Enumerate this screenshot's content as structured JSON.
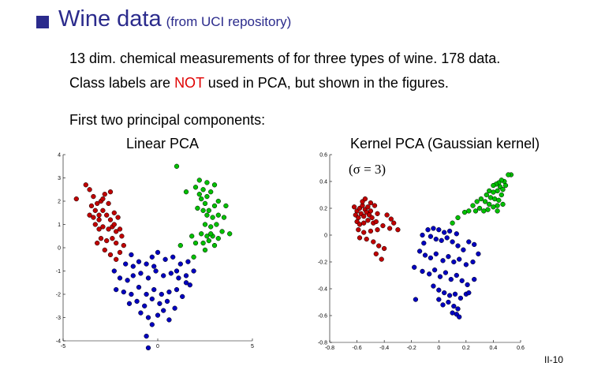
{
  "slide": {
    "title": "Wine data",
    "title_note": "(from UCI repository)",
    "line1": "13 dim. chemical measurements of for three types of wine. 178 data.",
    "line2_pre": "Class labels are ",
    "line2_emph": "NOT",
    "line2_post": " used in PCA, but shown in the figures.",
    "line3": "First two principal components:",
    "page_number": "II-10"
  },
  "colors": {
    "class1": "#c00000",
    "class2": "#00c000",
    "class3": "#0000c0",
    "accent": "#2b2b8c",
    "emphasis": "#e00000"
  },
  "chart_data": [
    {
      "type": "scatter",
      "title": "Linear PCA",
      "xlim": [
        -5,
        5
      ],
      "ylim": [
        -4,
        4
      ],
      "x_ticks": [
        "-5",
        "0",
        "5"
      ],
      "y_ticks": [
        "4",
        "3",
        "2",
        "1",
        "0",
        "-1",
        "-2",
        "-3",
        "-4"
      ],
      "series": [
        {
          "color": "#c00000",
          "points": [
            [
              -4.3,
              2.1
            ],
            [
              -3.8,
              2.7
            ],
            [
              -3.6,
              2.5
            ],
            [
              -3.4,
              2.2
            ],
            [
              -3.5,
              1.8
            ],
            [
              -3.3,
              1.6
            ],
            [
              -3.2,
              1.9
            ],
            [
              -3.0,
              2.0
            ],
            [
              -2.8,
              2.3
            ],
            [
              -2.5,
              2.4
            ],
            [
              -3.6,
              1.4
            ],
            [
              -3.4,
              1.3
            ],
            [
              -3.1,
              1.4
            ],
            [
              -2.9,
              1.6
            ],
            [
              -2.7,
              1.4
            ],
            [
              -2.5,
              1.2
            ],
            [
              -2.3,
              1.5
            ],
            [
              -2.1,
              1.3
            ],
            [
              -3.3,
              1.0
            ],
            [
              -3.1,
              0.8
            ],
            [
              -2.9,
              0.9
            ],
            [
              -2.6,
              0.8
            ],
            [
              -2.4,
              0.9
            ],
            [
              -2.2,
              0.7
            ],
            [
              -2.0,
              0.8
            ],
            [
              -3.0,
              0.4
            ],
            [
              -2.7,
              0.3
            ],
            [
              -2.4,
              0.4
            ],
            [
              -2.2,
              0.2
            ],
            [
              -1.9,
              0.5
            ],
            [
              -3.2,
              0.2
            ],
            [
              -2.8,
              -0.1
            ],
            [
              -2.5,
              -0.3
            ],
            [
              -2.2,
              -0.5
            ],
            [
              -2.0,
              -0.2
            ],
            [
              -2.6,
              1.9
            ],
            [
              -2.9,
              2.1
            ],
            [
              -3.1,
              1.2
            ],
            [
              -2.3,
              1.0
            ],
            [
              -1.8,
              0.1
            ]
          ]
        },
        {
          "color": "#00c000",
          "points": [
            [
              1.0,
              3.5
            ],
            [
              1.5,
              2.4
            ],
            [
              2.0,
              2.6
            ],
            [
              2.2,
              2.9
            ],
            [
              2.4,
              2.5
            ],
            [
              2.6,
              2.2
            ],
            [
              2.3,
              2.1
            ],
            [
              2.8,
              2.4
            ],
            [
              3.0,
              2.7
            ],
            [
              2.5,
              1.9
            ],
            [
              2.1,
              1.7
            ],
            [
              2.4,
              1.6
            ],
            [
              2.7,
              1.6
            ],
            [
              3.0,
              1.8
            ],
            [
              3.2,
              2.0
            ],
            [
              2.6,
              1.4
            ],
            [
              2.9,
              1.3
            ],
            [
              3.2,
              1.4
            ],
            [
              3.5,
              1.3
            ],
            [
              2.5,
              1.0
            ],
            [
              2.8,
              0.9
            ],
            [
              3.1,
              1.0
            ],
            [
              3.4,
              0.7
            ],
            [
              3.8,
              0.6
            ],
            [
              2.3,
              0.6
            ],
            [
              2.6,
              0.5
            ],
            [
              2.9,
              0.5
            ],
            [
              3.2,
              0.4
            ],
            [
              2.4,
              0.2
            ],
            [
              2.7,
              0.3
            ],
            [
              3.0,
              0.1
            ],
            [
              2.5,
              -0.1
            ],
            [
              2.8,
              0.6
            ],
            [
              3.6,
              1.8
            ],
            [
              1.8,
              0.5
            ],
            [
              2.0,
              0.2
            ],
            [
              1.2,
              0.1
            ],
            [
              2.2,
              2.3
            ],
            [
              2.6,
              2.8
            ],
            [
              1.9,
              -0.4
            ]
          ]
        },
        {
          "color": "#0000c0",
          "points": [
            [
              -1.4,
              -0.3
            ],
            [
              -1.7,
              -0.7
            ],
            [
              -1.3,
              -0.8
            ],
            [
              -1.0,
              -0.6
            ],
            [
              -0.6,
              -0.7
            ],
            [
              -0.3,
              -0.4
            ],
            [
              0.0,
              -0.2
            ],
            [
              0.4,
              -0.5
            ],
            [
              0.8,
              -0.4
            ],
            [
              1.2,
              -0.7
            ],
            [
              1.6,
              -0.6
            ],
            [
              -2.3,
              -1.0
            ],
            [
              -2.0,
              -1.3
            ],
            [
              -1.6,
              -1.4
            ],
            [
              -1.3,
              -1.2
            ],
            [
              -0.9,
              -1.1
            ],
            [
              -0.5,
              -1.3
            ],
            [
              -0.1,
              -1.0
            ],
            [
              0.3,
              -1.2
            ],
            [
              0.7,
              -1.1
            ],
            [
              1.1,
              -1.3
            ],
            [
              1.5,
              -1.2
            ],
            [
              1.9,
              -1.0
            ],
            [
              -2.2,
              -1.8
            ],
            [
              -1.8,
              -1.9
            ],
            [
              -1.4,
              -2.0
            ],
            [
              -1.0,
              -1.7
            ],
            [
              -0.6,
              -2.0
            ],
            [
              -0.2,
              -1.8
            ],
            [
              0.2,
              -2.0
            ],
            [
              0.6,
              -1.9
            ],
            [
              1.0,
              -1.8
            ],
            [
              1.3,
              -2.1
            ],
            [
              1.7,
              -1.6
            ],
            [
              -1.5,
              -2.4
            ],
            [
              -1.1,
              -2.3
            ],
            [
              -0.7,
              -2.5
            ],
            [
              -0.3,
              -2.2
            ],
            [
              0.1,
              -2.4
            ],
            [
              0.5,
              -2.3
            ],
            [
              0.9,
              -2.6
            ],
            [
              -0.9,
              -2.8
            ],
            [
              -0.5,
              -3.0
            ],
            [
              0.0,
              -2.9
            ],
            [
              0.6,
              -3.1
            ],
            [
              -0.3,
              -3.3
            ],
            [
              -0.6,
              -3.8
            ],
            [
              -0.5,
              -4.3
            ],
            [
              0.3,
              -2.7
            ],
            [
              1.5,
              -1.5
            ],
            [
              1.0,
              -1.0
            ],
            [
              -0.2,
              -0.8
            ]
          ]
        }
      ]
    },
    {
      "type": "scatter",
      "title": "Kernel PCA (Gaussian kernel)",
      "annotation": "(σ = 3)",
      "xlim": [
        -0.8,
        0.6
      ],
      "ylim": [
        -0.8,
        0.6
      ],
      "x_ticks": [
        "-0.8",
        "-0.6",
        "-0.4",
        "-0.2",
        "0",
        "0.2",
        "0.4",
        "0.6"
      ],
      "y_ticks": [
        "0.6",
        "0.4",
        "0.2",
        "0",
        "-0.2",
        "-0.4",
        "-0.6",
        "-0.8"
      ],
      "series": [
        {
          "color": "#c00000",
          "points": [
            [
              -0.62,
              0.21
            ],
            [
              -0.6,
              0.18
            ],
            [
              -0.58,
              0.2
            ],
            [
              -0.56,
              0.22
            ],
            [
              -0.54,
              0.19
            ],
            [
              -0.52,
              0.21
            ],
            [
              -0.5,
              0.18
            ],
            [
              -0.61,
              0.15
            ],
            [
              -0.59,
              0.13
            ],
            [
              -0.57,
              0.16
            ],
            [
              -0.55,
              0.14
            ],
            [
              -0.53,
              0.17
            ],
            [
              -0.51,
              0.15
            ],
            [
              -0.49,
              0.13
            ],
            [
              -0.6,
              0.1
            ],
            [
              -0.58,
              0.08
            ],
            [
              -0.55,
              0.09
            ],
            [
              -0.52,
              0.11
            ],
            [
              -0.48,
              0.09
            ],
            [
              -0.46,
              0.1
            ],
            [
              -0.59,
              0.04
            ],
            [
              -0.55,
              0.02
            ],
            [
              -0.5,
              0.03
            ],
            [
              -0.45,
              0.04
            ],
            [
              -0.41,
              0.07
            ],
            [
              -0.38,
              0.15
            ],
            [
              -0.35,
              0.12
            ],
            [
              -0.33,
              0.09
            ],
            [
              -0.36,
              0.05
            ],
            [
              -0.3,
              0.04
            ],
            [
              -0.58,
              -0.02
            ],
            [
              -0.53,
              -0.03
            ],
            [
              -0.48,
              -0.05
            ],
            [
              -0.44,
              -0.08
            ],
            [
              -0.4,
              -0.1
            ],
            [
              -0.46,
              -0.14
            ],
            [
              -0.42,
              -0.18
            ],
            [
              -0.56,
              0.25
            ],
            [
              -0.54,
              0.27
            ],
            [
              -0.5,
              0.24
            ],
            [
              -0.47,
              0.22
            ],
            [
              -0.45,
              0.16
            ]
          ]
        },
        {
          "color": "#00c000",
          "points": [
            [
              0.53,
              0.45
            ],
            [
              0.51,
              0.45
            ],
            [
              0.48,
              0.4
            ],
            [
              0.46,
              0.41
            ],
            [
              0.44,
              0.39
            ],
            [
              0.42,
              0.38
            ],
            [
              0.4,
              0.37
            ],
            [
              0.45,
              0.36
            ],
            [
              0.47,
              0.34
            ],
            [
              0.43,
              0.33
            ],
            [
              0.4,
              0.32
            ],
            [
              0.37,
              0.33
            ],
            [
              0.35,
              0.3
            ],
            [
              0.38,
              0.28
            ],
            [
              0.41,
              0.27
            ],
            [
              0.44,
              0.26
            ],
            [
              0.47,
              0.23
            ],
            [
              0.43,
              0.22
            ],
            [
              0.4,
              0.21
            ],
            [
              0.37,
              0.23
            ],
            [
              0.34,
              0.25
            ],
            [
              0.31,
              0.27
            ],
            [
              0.28,
              0.25
            ],
            [
              0.25,
              0.22
            ],
            [
              0.22,
              0.18
            ],
            [
              0.19,
              0.17
            ],
            [
              0.36,
              0.19
            ],
            [
              0.33,
              0.18
            ],
            [
              0.3,
              0.2
            ],
            [
              0.27,
              0.18
            ],
            [
              0.14,
              0.13
            ],
            [
              0.1,
              0.09
            ],
            [
              0.43,
              0.18
            ],
            [
              0.46,
              0.3
            ],
            [
              0.49,
              0.37
            ]
          ]
        },
        {
          "color": "#0000c0",
          "points": [
            [
              -0.08,
              0.04
            ],
            [
              -0.04,
              0.05
            ],
            [
              0.0,
              0.04
            ],
            [
              0.04,
              0.02
            ],
            [
              0.08,
              0.03
            ],
            [
              0.13,
              0.01
            ],
            [
              -0.12,
              0.0
            ],
            [
              -0.06,
              -0.01
            ],
            [
              -0.02,
              -0.03
            ],
            [
              0.02,
              -0.04
            ],
            [
              0.06,
              -0.02
            ],
            [
              0.1,
              -0.05
            ],
            [
              0.14,
              -0.08
            ],
            [
              0.18,
              -0.11
            ],
            [
              0.22,
              -0.05
            ],
            [
              0.26,
              -0.07
            ],
            [
              -0.14,
              -0.12
            ],
            [
              -0.1,
              -0.15
            ],
            [
              -0.06,
              -0.17
            ],
            [
              -0.02,
              -0.14
            ],
            [
              0.03,
              -0.19
            ],
            [
              0.07,
              -0.16
            ],
            [
              0.11,
              -0.2
            ],
            [
              0.15,
              -0.18
            ],
            [
              0.2,
              -0.22
            ],
            [
              0.25,
              -0.2
            ],
            [
              -0.18,
              -0.24
            ],
            [
              -0.12,
              -0.27
            ],
            [
              -0.07,
              -0.29
            ],
            [
              -0.03,
              -0.26
            ],
            [
              0.01,
              -0.31
            ],
            [
              0.05,
              -0.28
            ],
            [
              0.09,
              -0.33
            ],
            [
              0.13,
              -0.3
            ],
            [
              0.17,
              -0.34
            ],
            [
              0.21,
              -0.37
            ],
            [
              0.26,
              -0.33
            ],
            [
              -0.04,
              -0.38
            ],
            [
              0.0,
              -0.41
            ],
            [
              0.04,
              -0.43
            ],
            [
              0.08,
              -0.45
            ],
            [
              0.12,
              -0.44
            ],
            [
              0.16,
              -0.47
            ],
            [
              0.2,
              -0.44
            ],
            [
              0.03,
              -0.52
            ],
            [
              0.07,
              -0.5
            ],
            [
              0.11,
              -0.53
            ],
            [
              0.14,
              -0.55
            ],
            [
              0.0,
              -0.48
            ],
            [
              -0.17,
              -0.48
            ],
            [
              0.13,
              -0.59
            ],
            [
              0.15,
              -0.61
            ],
            [
              0.1,
              -0.58
            ],
            [
              -0.11,
              -0.06
            ],
            [
              0.29,
              -0.14
            ],
            [
              0.22,
              -0.43
            ]
          ]
        }
      ]
    }
  ]
}
